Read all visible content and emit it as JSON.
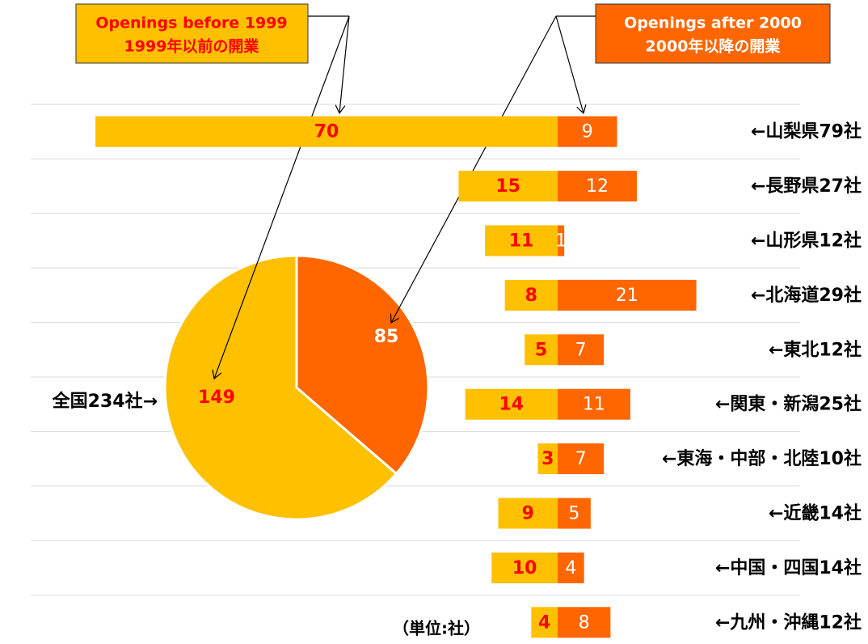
{
  "chart_data": [
    {
      "type": "diverging-bar",
      "categories": [
        "←山梨県79社",
        "←長野県27社",
        "←山形県12社",
        "←北海道29社",
        "←東北12社",
        "←関東・新潟25社",
        "←東海・中部・北陸10社",
        "←近畿14社",
        "←中国・四国14社",
        "←九州・沖縄12社"
      ],
      "series": [
        {
          "name": "Openings before 1999",
          "subname": "1999年以前の開業",
          "color": "#ffc000",
          "label_color": "#ff0000",
          "values": [
            70,
            15,
            11,
            8,
            5,
            14,
            3,
            9,
            10,
            4
          ]
        },
        {
          "name": "Openings after 2000",
          "subname": "2000年以降の開業",
          "color": "#ff6600",
          "label_color": "#ffffff",
          "values": [
            9,
            12,
            1,
            21,
            7,
            11,
            7,
            5,
            4,
            8
          ]
        }
      ],
      "note": "（単位:社）"
    },
    {
      "type": "pie",
      "label": "全国234社→",
      "values": [
        149,
        85
      ],
      "colors": [
        "#ffc000",
        "#ff6600"
      ],
      "label_colors": [
        "#ff0000",
        "#ffffff"
      ]
    }
  ]
}
